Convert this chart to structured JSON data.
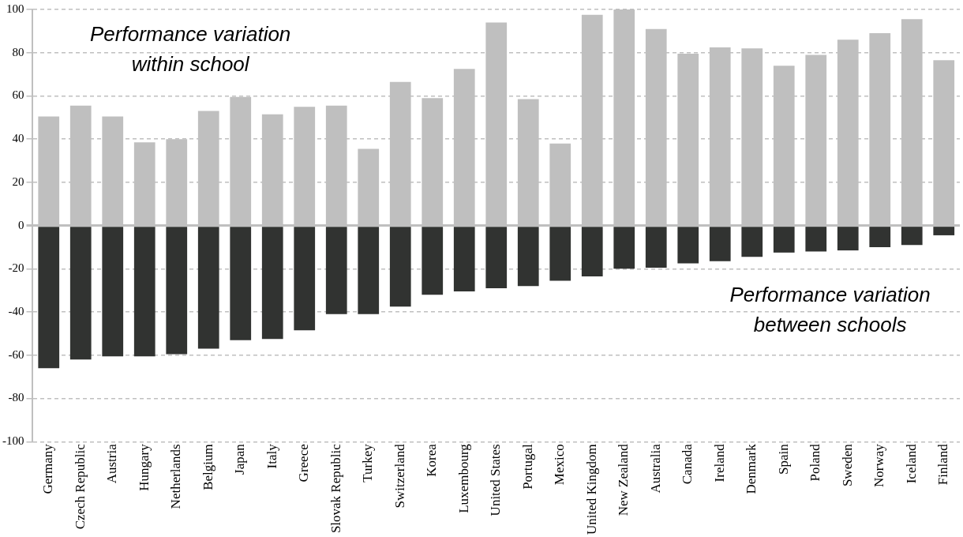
{
  "chart_data": {
    "type": "bar",
    "stacked": true,
    "categories": [
      "Germany",
      "Czech Republic",
      "Austria",
      "Hungary",
      "Netherlands",
      "Belgium",
      "Japan",
      "Italy",
      "Greece",
      "Slovak Republic",
      "Turkey",
      "Switzerland",
      "Korea",
      "Luxembourg",
      "United States",
      "Portugal",
      "Mexico",
      "United Kingdom",
      "New Zealand",
      "Australia",
      "Canada",
      "Ireland",
      "Denmark",
      "Spain",
      "Poland",
      "Sweden",
      "Norway",
      "Iceland",
      "Finland"
    ],
    "series": [
      {
        "color": "#bfbfbf",
        "values": [
          50.5,
          55.5,
          50.5,
          38.5,
          40,
          53,
          59.5,
          51.5,
          55,
          55.5,
          35.5,
          66.5,
          59,
          72.5,
          94,
          58.5,
          38,
          97.5,
          100,
          91,
          79.5,
          82.5,
          82,
          74,
          79,
          86,
          89,
          95.5,
          76.5
        ]
      },
      {
        "color": "#313331",
        "values": [
          -66,
          -62,
          -60.5,
          -60.5,
          -59.5,
          -57,
          -53,
          -52.5,
          -48.5,
          -41,
          -41,
          -37.5,
          -32,
          -30.5,
          -29,
          -28,
          -25.5,
          -23.5,
          -20,
          -19.5,
          -17.5,
          -16.5,
          -14.5,
          -12.5,
          -12,
          -11.5,
          -10,
          -9,
          -4.5
        ]
      }
    ],
    "ylim": [
      -100,
      100
    ],
    "yticks": [
      -100,
      -80,
      -60,
      -40,
      -20,
      0,
      20,
      40,
      60,
      80,
      100
    ],
    "grid": "y",
    "legend": false,
    "annotations": [
      "Performance variation\nwithin school",
      "Performance variation\nbetween schools"
    ]
  }
}
